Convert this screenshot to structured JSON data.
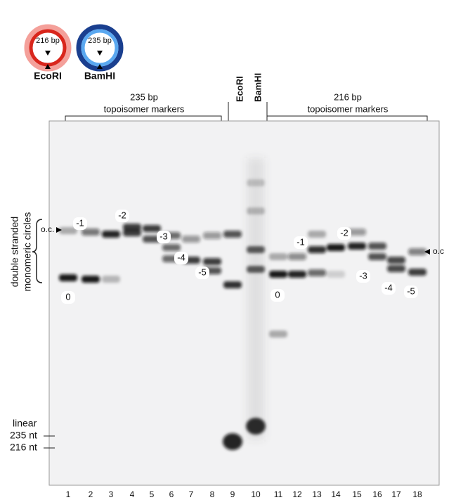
{
  "plasmids": [
    {
      "size": "216 bp",
      "enzyme": "EcoRI"
    },
    {
      "size": "235 bp",
      "enzyme": "BamHI"
    }
  ],
  "headers": {
    "left": {
      "line1": "235 bp",
      "line2": "topoisomer markers"
    },
    "right": {
      "line1": "216 bp",
      "line2": "topoisomer markers"
    },
    "lane9": "EcoRI",
    "lane10": "BamHI"
  },
  "side": {
    "line1": "double stranded",
    "line2": "monomeric circles",
    "oc_left": "o.c.",
    "oc_right": "o.c",
    "linear": "linear",
    "nt235": "235 nt",
    "nt216": "216 nt"
  },
  "topoisomer_labels": {
    "left": [
      "0",
      "-1",
      "-2",
      "-3",
      "-4",
      "-5"
    ],
    "right": [
      "0",
      "-1",
      "-2",
      "-3",
      "-4",
      "-5"
    ]
  },
  "lanes": [
    "1",
    "2",
    "3",
    "4",
    "5",
    "6",
    "7",
    "8",
    "9",
    "10",
    "11",
    "12",
    "13",
    "14",
    "15",
    "16",
    "17",
    "18"
  ]
}
